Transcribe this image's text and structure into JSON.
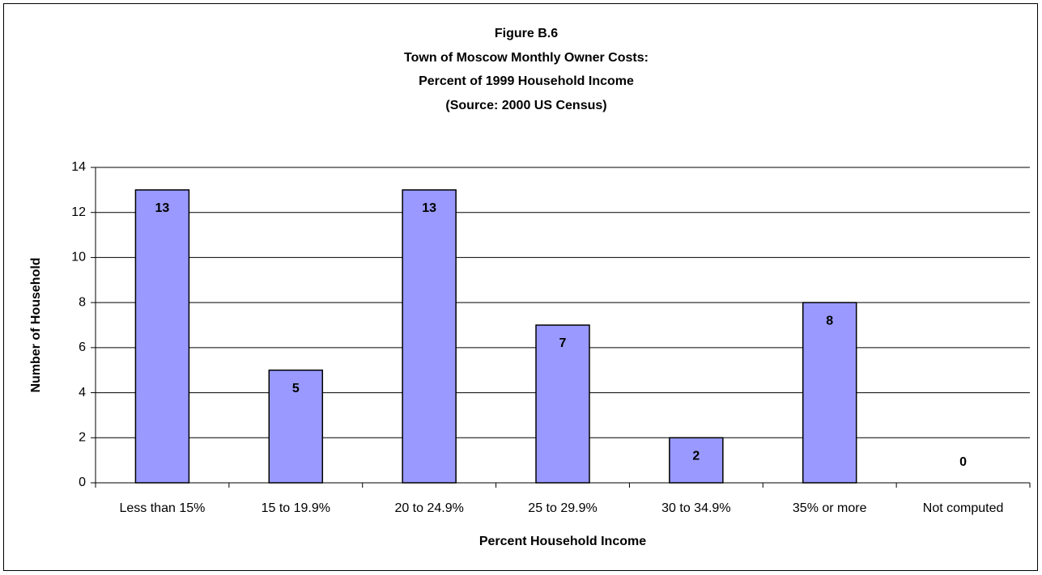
{
  "chart_data": {
    "type": "bar",
    "title": [
      "Figure B.6",
      "Town of Moscow Monthly Owner Costs:",
      "Percent of 1999 Household Income",
      "(Source:  2000 US Census)"
    ],
    "x_label": "Percent Household Income",
    "y_label": "Number of Household",
    "categories": [
      "Less than 15%",
      "15 to 19.9%",
      "20 to 24.9%",
      "25 to 29.9%",
      "30 to 34.9%",
      "35% or more",
      "Not computed"
    ],
    "values": [
      13,
      5,
      13,
      7,
      2,
      8,
      0
    ],
    "color": "#9999ff",
    "ylim": [
      0,
      14
    ],
    "yticks": [
      0,
      2,
      4,
      6,
      8,
      10,
      12,
      14
    ],
    "grid": true
  }
}
